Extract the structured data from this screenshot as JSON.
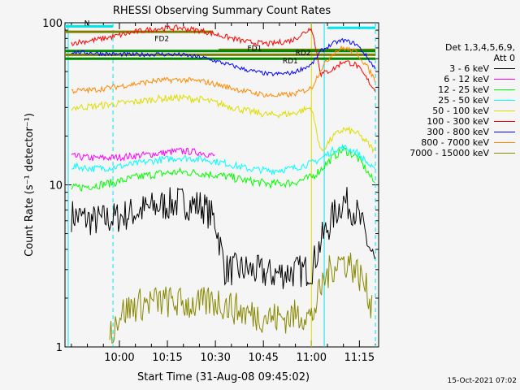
{
  "chart_data": {
    "type": "line",
    "title": "RHESSI Observing Summary Count Rates",
    "xlabel": "Start Time (31-Aug-08 09:45:02)",
    "ylabel": "Count Rate (s⁻¹ detector⁻¹)",
    "y_scale": "log",
    "ylim": [
      1,
      100
    ],
    "xlim_minutes": [
      -2,
      29
    ],
    "xlim": [
      "09:43",
      "11:21"
    ],
    "x_ticks": [
      "10:00",
      "10:15",
      "10:30",
      "10:45",
      "11:00",
      "11:15"
    ],
    "y_ticks": [
      "1",
      "10",
      "100"
    ],
    "legend_header": [
      "Det 1,3,4,5,6,9,",
      "Att 0"
    ],
    "legend_placement": "right",
    "grid": false,
    "series": [
      {
        "name": "3 - 6 keV",
        "color": "#000000",
        "x": [
          "09:45",
          "09:52",
          "09:58",
          "10:05",
          "10:12",
          "10:19",
          "10:26",
          "10:30",
          "10:33",
          "10:40",
          "10:47",
          "10:54",
          "11:00",
          "11:03",
          "11:07",
          "11:10",
          "11:14",
          "11:17",
          "11:20"
        ],
        "y": [
          6.5,
          6.0,
          6.2,
          6.8,
          7.4,
          7.8,
          7.4,
          6.0,
          3.0,
          3.0,
          2.8,
          2.9,
          3.0,
          4.5,
          6.5,
          8.0,
          6.8,
          4.8,
          3.2
        ]
      },
      {
        "name": "6 - 12 keV",
        "color": "#ff00ff",
        "x": [
          "09:45",
          "09:52",
          "09:58",
          "10:05",
          "10:12",
          "10:19",
          "10:26",
          "10:30"
        ],
        "y": [
          15.0,
          14.6,
          14.7,
          15.1,
          15.6,
          16.2,
          15.8,
          15.0
        ]
      },
      {
        "name": "12 - 25 keV",
        "color": "#00ff00",
        "x": [
          "09:45",
          "09:52",
          "09:58",
          "10:05",
          "10:12",
          "10:19",
          "10:26",
          "10:33",
          "10:40",
          "10:47",
          "10:54",
          "11:00",
          "11:03",
          "11:07",
          "11:10",
          "11:14",
          "11:17",
          "11:20"
        ],
        "y": [
          9.5,
          9.9,
          10.3,
          11.1,
          11.7,
          12.0,
          11.8,
          11.3,
          10.6,
          10.1,
          10.3,
          11.1,
          12.5,
          15.0,
          16.5,
          15.0,
          12.5,
          10.0
        ]
      },
      {
        "name": "25 - 50 keV",
        "color": "#00ffff",
        "x": [
          "09:45",
          "09:52",
          "09:58",
          "10:05",
          "10:12",
          "10:19",
          "10:26",
          "10:33",
          "10:40",
          "10:47",
          "10:54",
          "11:00",
          "11:03",
          "11:07",
          "11:10",
          "11:14",
          "11:17",
          "11:20"
        ],
        "y": [
          13.0,
          12.6,
          12.8,
          13.5,
          14.2,
          14.7,
          14.4,
          13.6,
          12.6,
          12.2,
          12.6,
          13.6,
          14.5,
          16.5,
          17.0,
          16.0,
          14.0,
          12.0
        ]
      },
      {
        "name": "50 - 100 keV",
        "color": "#dddd00",
        "x": [
          "09:45",
          "09:52",
          "09:58",
          "10:05",
          "10:12",
          "10:19",
          "10:26",
          "10:33",
          "10:40",
          "10:47",
          "10:54",
          "11:00",
          "11:03",
          "11:07",
          "11:10",
          "11:14",
          "11:17",
          "11:20"
        ],
        "y": [
          30.0,
          30.5,
          31.5,
          32.5,
          34.0,
          34.5,
          33.5,
          31.0,
          28.5,
          27.0,
          27.5,
          30.0,
          16.0,
          20.0,
          22.0,
          21.0,
          18.5,
          16.0
        ]
      },
      {
        "name": "100 - 300 keV",
        "color": "#ff0000",
        "x": [
          "09:45",
          "09:52",
          "09:58",
          "10:05",
          "10:12",
          "10:19",
          "10:26",
          "10:33",
          "10:40",
          "10:47",
          "10:54",
          "10:59",
          "11:00",
          "11:03",
          "11:07",
          "11:10",
          "11:14",
          "11:17",
          "11:20"
        ],
        "y": [
          75.0,
          78.0,
          82.0,
          88.0,
          92.0,
          93.0,
          89.0,
          82.0,
          76.0,
          74.0,
          78.0,
          90.0,
          95.0,
          48.0,
          52.0,
          58.0,
          55.0,
          46.0,
          38.0
        ]
      },
      {
        "name": "300 - 800 keV",
        "color": "#0000ff",
        "x": [
          "09:45",
          "09:52",
          "09:58",
          "10:05",
          "10:12",
          "10:19",
          "10:26",
          "10:33",
          "10:40",
          "10:47",
          "10:54",
          "11:00",
          "11:03",
          "11:07",
          "11:10",
          "11:14",
          "11:17",
          "11:20"
        ],
        "y": [
          66.0,
          65.0,
          64.0,
          63.5,
          64.0,
          63.5,
          61.0,
          56.0,
          51.0,
          48.0,
          49.0,
          55.0,
          67.0,
          75.0,
          78.0,
          74.0,
          63.0,
          52.0
        ]
      },
      {
        "name": "800 - 7000 keV",
        "color": "#ff8800",
        "x": [
          "09:45",
          "09:52",
          "09:58",
          "10:05",
          "10:12",
          "10:19",
          "10:26",
          "10:33",
          "10:40",
          "10:47",
          "10:54",
          "11:00",
          "11:03",
          "11:07",
          "11:10",
          "11:14",
          "11:17",
          "11:20"
        ],
        "y": [
          38.0,
          38.5,
          40.0,
          42.0,
          44.0,
          44.5,
          43.5,
          40.5,
          37.5,
          35.5,
          36.0,
          39.5,
          52.0,
          66.0,
          70.0,
          66.0,
          55.0,
          44.0
        ]
      },
      {
        "name": "7000 - 15000 keV",
        "color": "#888800",
        "x": [
          "09:57",
          "10:00",
          "10:05",
          "10:10",
          "10:15",
          "10:20",
          "10:25",
          "10:28",
          "10:31",
          "10:40",
          "10:50",
          "10:58",
          "11:00",
          "11:04",
          "11:08",
          "11:12",
          "11:16",
          "11:19"
        ],
        "y": [
          1.2,
          1.6,
          1.8,
          1.9,
          1.9,
          1.85,
          1.8,
          1.9,
          1.9,
          1.6,
          1.5,
          1.6,
          1.5,
          2.6,
          3.4,
          3.3,
          2.6,
          1.8
        ]
      }
    ],
    "annotations": [
      {
        "text": "N",
        "color": "#00e5ee"
      },
      {
        "text": "FD2",
        "color": "#808000"
      },
      {
        "text": "FD1",
        "color": "#808000"
      },
      {
        "text": "RD1",
        "color": "#808000"
      },
      {
        "text": "RD2",
        "color": "#808000"
      }
    ],
    "flag_bars": [
      {
        "color": "#00e5ee",
        "x": [
          "09:43",
          "09:58"
        ],
        "y": 95
      },
      {
        "color": "#00e5ee",
        "x": [
          "11:05",
          "11:20"
        ],
        "y": 93
      },
      {
        "color": "#808000",
        "x": [
          "09:43",
          "10:29"
        ],
        "y": 88
      },
      {
        "color": "#808000",
        "x": [
          "10:31",
          "11:20"
        ],
        "y": 68
      },
      {
        "color": "#008800",
        "x": [
          "09:43",
          "11:20"
        ],
        "y": 67
      },
      {
        "color": "#008800",
        "x": [
          "09:43",
          "11:20"
        ],
        "y": 60
      },
      {
        "color": "#808000",
        "x": [
          "09:43",
          "11:20"
        ],
        "y": 63.5
      }
    ],
    "vertical_lines": [
      {
        "color": "#00e5ee",
        "style": "dashed",
        "x": "09:58"
      },
      {
        "color": "#00e5ee",
        "style": "solid",
        "x": "11:04"
      },
      {
        "color": "#00e5ee",
        "style": "dashed",
        "x": "11:20"
      },
      {
        "color": "#00e5ee",
        "style": "solid",
        "x": "09:44"
      },
      {
        "color": "#dddd00",
        "style": "solid",
        "x": "11:00"
      }
    ]
  },
  "footer": {
    "timestamp": "15-Oct-2021 07:02"
  }
}
